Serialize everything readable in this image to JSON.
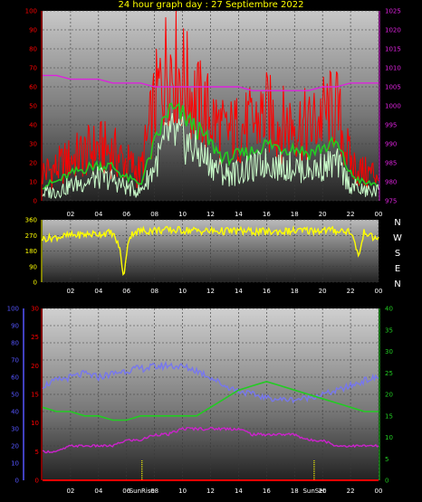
{
  "title": "24 hour graph day : 27 Septiembre 2022",
  "colors": {
    "wind_gust": "#ff0000",
    "wind_avg": "#22cc22",
    "wind_now": "#ccffcc",
    "pressure": "#dd22dd",
    "direction": "#ffff00",
    "humidity": "#7777ee",
    "temperature": "#22cc22",
    "dewpoint": "#cc22cc",
    "rain": "#ff0000",
    "marker": "#ffff00",
    "axis_left_top": "#ff0000",
    "axis_right_top": "#dd22dd",
    "axis_left_bottom": "#5555ff",
    "axis_left2_bottom": "#ff0000",
    "axis_right_bottom": "#22cc22"
  },
  "x_ticks": [
    "02",
    "04",
    "06",
    "08",
    "10",
    "12",
    "14",
    "16",
    "18",
    "20",
    "22",
    "00"
  ],
  "chart_data": [
    {
      "type": "line",
      "name": "wind-pressure-chart",
      "x": [
        0,
        1,
        2,
        3,
        4,
        5,
        6,
        7,
        8,
        9,
        10,
        11,
        12,
        13,
        14,
        15,
        16,
        17,
        18,
        19,
        20,
        21,
        22,
        23,
        24
      ],
      "series": [
        {
          "values": [
            15,
            17,
            22,
            25,
            28,
            26,
            20,
            15,
            50,
            75,
            65,
            52,
            45,
            35,
            38,
            40,
            46,
            40,
            42,
            38,
            45,
            48,
            20,
            14,
            15
          ]
        },
        {
          "values": [
            8,
            10,
            14,
            17,
            19,
            18,
            12,
            9,
            30,
            48,
            45,
            38,
            30,
            22,
            24,
            26,
            30,
            28,
            28,
            25,
            28,
            30,
            14,
            9,
            9
          ]
        },
        {
          "values": [
            4,
            5,
            8,
            10,
            12,
            11,
            7,
            5,
            18,
            35,
            32,
            26,
            20,
            14,
            15,
            17,
            20,
            18,
            18,
            16,
            18,
            20,
            8,
            5,
            5
          ]
        },
        {
          "values": [
            1008,
            1008,
            1007,
            1007,
            1007,
            1006,
            1006,
            1006,
            1005,
            1005,
            1005,
            1005,
            1005,
            1005,
            1005,
            1004,
            1004,
            1004,
            1004,
            1004,
            1005,
            1005,
            1006,
            1006,
            1006
          ]
        }
      ],
      "y_ticks": [
        0,
        10,
        20,
        30,
        40,
        50,
        60,
        70,
        80,
        90,
        100
      ],
      "ylim": [
        0,
        100
      ],
      "y2_ticks": [
        975,
        980,
        985,
        990,
        995,
        1000,
        1005,
        1010,
        1015,
        1020,
        1025
      ],
      "y2lim": [
        975,
        1025
      ],
      "xlim": [
        0,
        24
      ]
    },
    {
      "type": "line",
      "name": "direction-chart",
      "x": [
        0,
        1,
        2,
        3,
        4,
        5,
        5.5,
        5.8,
        6.1,
        6.5,
        7,
        8,
        10,
        12,
        14,
        16,
        18,
        20,
        22,
        22.6,
        23,
        23.5,
        24
      ],
      "series": [
        {
          "values": [
            250,
            260,
            270,
            275,
            280,
            285,
            200,
            20,
            240,
            290,
            295,
            300,
            300,
            295,
            295,
            290,
            295,
            300,
            295,
            150,
            300,
            260,
            250
          ]
        }
      ],
      "y_ticks": [
        0,
        90,
        180,
        270,
        360
      ],
      "ylim": [
        0,
        360
      ],
      "direction_labels": [
        "N",
        "W",
        "S",
        "E",
        "N"
      ],
      "xlim": [
        0,
        24
      ]
    },
    {
      "type": "line",
      "name": "temp-humidity-chart",
      "x": [
        0,
        1,
        2,
        3,
        4,
        5,
        6,
        7,
        8,
        9,
        10,
        11,
        12,
        13,
        14,
        15,
        16,
        17,
        18,
        19,
        20,
        21,
        22,
        23,
        24
      ],
      "series": [
        {
          "values": [
            55,
            58,
            60,
            62,
            60,
            62,
            64,
            65,
            66,
            67,
            66,
            64,
            60,
            55,
            52,
            50,
            48,
            47,
            47,
            48,
            50,
            52,
            55,
            58,
            60
          ]
        },
        {
          "values": [
            17,
            16,
            16,
            15,
            15,
            14,
            14,
            15,
            15,
            15,
            15,
            15,
            17,
            19,
            21,
            22,
            23,
            22,
            21,
            20,
            19,
            18,
            17,
            16,
            16
          ]
        },
        {
          "values": [
            5,
            5,
            6,
            6,
            6,
            6,
            7,
            7,
            8,
            8,
            9,
            9,
            9,
            9,
            9,
            8,
            8,
            8,
            8,
            7,
            7,
            6,
            6,
            6,
            6
          ]
        },
        {
          "values": [
            0,
            0,
            0,
            0,
            0,
            0,
            0,
            0,
            0,
            0,
            0,
            0,
            0,
            0,
            0,
            0,
            0,
            0,
            0,
            0,
            0,
            0,
            0,
            0,
            0
          ]
        }
      ],
      "y_ticks": [
        0,
        10,
        20,
        30,
        40,
        50,
        60,
        70,
        80,
        90,
        100
      ],
      "ylim": [
        0,
        100
      ],
      "y2_ticks": [
        0,
        5,
        10,
        15,
        20,
        25,
        30
      ],
      "y2lim": [
        0,
        30
      ],
      "y3_ticks": [
        0,
        5,
        10,
        15,
        20,
        25,
        30,
        35,
        40
      ],
      "y3lim": [
        0,
        40
      ],
      "sunrise_x": 7.1,
      "sunset_x": 19.4,
      "sunrise_label": "SunRise",
      "sunset_label": "SunSet",
      "xlim": [
        0,
        24
      ]
    }
  ]
}
